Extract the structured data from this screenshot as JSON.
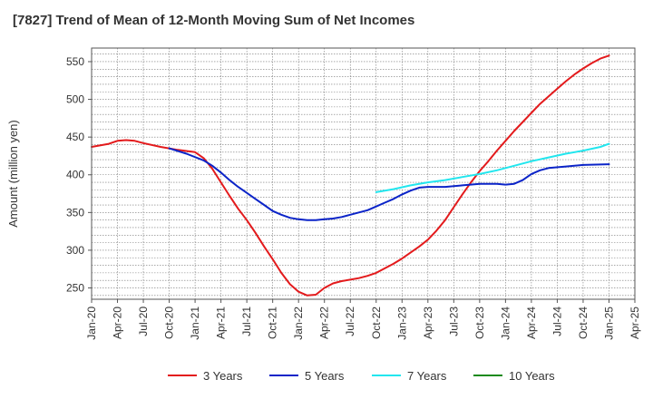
{
  "chart_data": {
    "type": "line",
    "title": "[7827]  Trend of Mean of 12-Month Moving Sum of Net Incomes",
    "xlabel": "",
    "ylabel": "Amount (million yen)",
    "ylim": [
      235,
      568
    ],
    "yticks": [
      250,
      300,
      350,
      400,
      450,
      500,
      550
    ],
    "xlim": [
      "2020-01",
      "2025-04"
    ],
    "xtick_labels": [
      "Jan-20",
      "Apr-20",
      "Jul-20",
      "Oct-20",
      "Jan-21",
      "Apr-21",
      "Jul-21",
      "Oct-21",
      "Jan-22",
      "Apr-22",
      "Jul-22",
      "Oct-22",
      "Jan-23",
      "Apr-23",
      "Jul-23",
      "Oct-23",
      "Jan-24",
      "Apr-24",
      "Jul-24",
      "Oct-24",
      "Jan-25",
      "Apr-25"
    ],
    "grid": true,
    "legend_position": "bottom",
    "series": [
      {
        "name": "3 Years",
        "color": "#e31a1c",
        "points": [
          [
            "2020-01",
            437
          ],
          [
            "2020-03",
            441
          ],
          [
            "2020-04",
            445
          ],
          [
            "2020-05",
            446
          ],
          [
            "2020-06",
            445
          ],
          [
            "2020-07",
            442
          ],
          [
            "2020-09",
            437
          ],
          [
            "2020-11",
            433
          ],
          [
            "2021-01",
            430
          ],
          [
            "2021-02",
            422
          ],
          [
            "2021-03",
            408
          ],
          [
            "2021-04",
            390
          ],
          [
            "2021-05",
            372
          ],
          [
            "2021-06",
            355
          ],
          [
            "2021-07",
            340
          ],
          [
            "2021-08",
            323
          ],
          [
            "2021-09",
            305
          ],
          [
            "2021-10",
            288
          ],
          [
            "2021-11",
            270
          ],
          [
            "2021-12",
            255
          ],
          [
            "2022-01",
            245
          ],
          [
            "2022-02",
            240
          ],
          [
            "2022-03",
            241
          ],
          [
            "2022-04",
            250
          ],
          [
            "2022-05",
            256
          ],
          [
            "2022-06",
            259
          ],
          [
            "2022-07",
            261
          ],
          [
            "2022-08",
            263
          ],
          [
            "2022-09",
            266
          ],
          [
            "2022-10",
            270
          ],
          [
            "2022-11",
            276
          ],
          [
            "2022-12",
            282
          ],
          [
            "2023-01",
            289
          ],
          [
            "2023-02",
            297
          ],
          [
            "2023-03",
            305
          ],
          [
            "2023-04",
            314
          ],
          [
            "2023-05",
            326
          ],
          [
            "2023-06",
            340
          ],
          [
            "2023-07",
            357
          ],
          [
            "2023-08",
            374
          ],
          [
            "2023-09",
            390
          ],
          [
            "2023-10",
            405
          ],
          [
            "2023-11",
            418
          ],
          [
            "2023-12",
            432
          ],
          [
            "2024-01",
            445
          ],
          [
            "2024-02",
            458
          ],
          [
            "2024-03",
            470
          ],
          [
            "2024-04",
            482
          ],
          [
            "2024-05",
            494
          ],
          [
            "2024-06",
            504
          ],
          [
            "2024-07",
            514
          ],
          [
            "2024-08",
            524
          ],
          [
            "2024-09",
            533
          ],
          [
            "2024-10",
            541
          ],
          [
            "2024-11",
            548
          ],
          [
            "2024-12",
            554
          ],
          [
            "2025-01",
            558
          ]
        ]
      },
      {
        "name": "5 Years",
        "color": "#0b24c8",
        "points": [
          [
            "2020-10",
            435
          ],
          [
            "2020-12",
            428
          ],
          [
            "2021-02",
            419
          ],
          [
            "2021-03",
            412
          ],
          [
            "2021-04",
            403
          ],
          [
            "2021-05",
            393
          ],
          [
            "2021-06",
            384
          ],
          [
            "2021-07",
            376
          ],
          [
            "2021-08",
            368
          ],
          [
            "2021-09",
            360
          ],
          [
            "2021-10",
            352
          ],
          [
            "2021-11",
            347
          ],
          [
            "2021-12",
            343
          ],
          [
            "2022-01",
            341
          ],
          [
            "2022-02",
            340
          ],
          [
            "2022-03",
            340
          ],
          [
            "2022-04",
            341
          ],
          [
            "2022-05",
            342
          ],
          [
            "2022-06",
            344
          ],
          [
            "2022-07",
            347
          ],
          [
            "2022-08",
            350
          ],
          [
            "2022-09",
            353
          ],
          [
            "2022-10",
            358
          ],
          [
            "2022-11",
            363
          ],
          [
            "2022-12",
            368
          ],
          [
            "2023-01",
            374
          ],
          [
            "2023-02",
            379
          ],
          [
            "2023-03",
            383
          ],
          [
            "2023-04",
            384
          ],
          [
            "2023-06",
            384
          ],
          [
            "2023-08",
            386
          ],
          [
            "2023-10",
            388
          ],
          [
            "2023-12",
            388
          ],
          [
            "2024-01",
            387
          ],
          [
            "2024-02",
            388
          ],
          [
            "2024-03",
            393
          ],
          [
            "2024-04",
            401
          ],
          [
            "2024-05",
            406
          ],
          [
            "2024-06",
            409
          ],
          [
            "2024-08",
            411
          ],
          [
            "2024-10",
            413
          ],
          [
            "2025-01",
            414
          ]
        ]
      },
      {
        "name": "7 Years",
        "color": "#22e6ee",
        "points": [
          [
            "2022-10",
            377
          ],
          [
            "2022-12",
            381
          ],
          [
            "2023-02",
            386
          ],
          [
            "2023-04",
            390
          ],
          [
            "2023-06",
            393
          ],
          [
            "2023-08",
            397
          ],
          [
            "2023-10",
            401
          ],
          [
            "2023-12",
            406
          ],
          [
            "2024-02",
            412
          ],
          [
            "2024-04",
            418
          ],
          [
            "2024-06",
            423
          ],
          [
            "2024-08",
            428
          ],
          [
            "2024-10",
            432
          ],
          [
            "2024-12",
            437
          ],
          [
            "2025-01",
            441
          ]
        ]
      },
      {
        "name": "10 Years",
        "color": "#1a8a1a",
        "points": []
      }
    ]
  }
}
